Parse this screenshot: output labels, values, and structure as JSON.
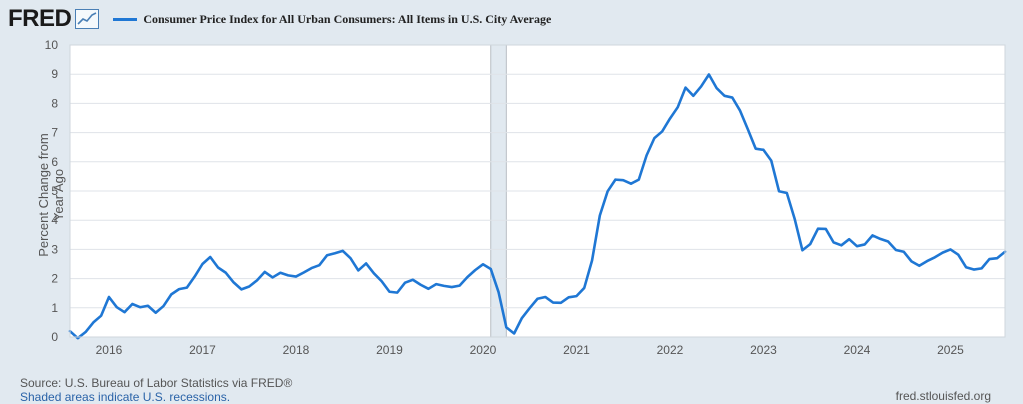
{
  "brand": {
    "logo_text": "FRED",
    "logo_icon": "chart-line-icon"
  },
  "legend": {
    "label": "Consumer Price Index for All Urban Consumers: All Items in U.S. City Average",
    "color": "#1f77d4"
  },
  "footer": {
    "source": "Source: U.S. Bureau of Labor Statistics via FRED®",
    "recession_note": "Shaded areas indicate U.S. recessions.",
    "site": "fred.stlouisfed.org"
  },
  "chart_data": {
    "type": "line",
    "title": "Consumer Price Index for All Urban Consumers: All Items in U.S. City Average",
    "ylabel": "Percent Change from Year Ago",
    "xlabel": "",
    "ylim": [
      0,
      10
    ],
    "yticks": [
      0,
      1,
      2,
      3,
      4,
      5,
      6,
      7,
      8,
      9,
      10
    ],
    "xlim": [
      "2015-08",
      "2025-08"
    ],
    "xticks": [
      "2016",
      "2017",
      "2018",
      "2019",
      "2020",
      "2021",
      "2022",
      "2023",
      "2024",
      "2025"
    ],
    "grid": true,
    "recession_shading": [
      {
        "start": "2020-02",
        "end": "2020-04",
        "color": "#e1e9f0"
      }
    ],
    "series": [
      {
        "name": "Consumer Price Index for All Urban Consumers: All Items in U.S. City Average",
        "color": "#1f77d4",
        "x": [
          "2015-08",
          "2015-09",
          "2015-10",
          "2015-11",
          "2015-12",
          "2016-01",
          "2016-02",
          "2016-03",
          "2016-04",
          "2016-05",
          "2016-06",
          "2016-07",
          "2016-08",
          "2016-09",
          "2016-10",
          "2016-11",
          "2016-12",
          "2017-01",
          "2017-02",
          "2017-03",
          "2017-04",
          "2017-05",
          "2017-06",
          "2017-07",
          "2017-08",
          "2017-09",
          "2017-10",
          "2017-11",
          "2017-12",
          "2018-01",
          "2018-02",
          "2018-03",
          "2018-04",
          "2018-05",
          "2018-06",
          "2018-07",
          "2018-08",
          "2018-09",
          "2018-10",
          "2018-11",
          "2018-12",
          "2019-01",
          "2019-02",
          "2019-03",
          "2019-04",
          "2019-05",
          "2019-06",
          "2019-07",
          "2019-08",
          "2019-09",
          "2019-10",
          "2019-11",
          "2019-12",
          "2020-01",
          "2020-02",
          "2020-03",
          "2020-04",
          "2020-05",
          "2020-06",
          "2020-07",
          "2020-08",
          "2020-09",
          "2020-10",
          "2020-11",
          "2020-12",
          "2021-01",
          "2021-02",
          "2021-03",
          "2021-04",
          "2021-05",
          "2021-06",
          "2021-07",
          "2021-08",
          "2021-09",
          "2021-10",
          "2021-11",
          "2021-12",
          "2022-01",
          "2022-02",
          "2022-03",
          "2022-04",
          "2022-05",
          "2022-06",
          "2022-07",
          "2022-08",
          "2022-09",
          "2022-10",
          "2022-11",
          "2022-12",
          "2023-01",
          "2023-02",
          "2023-03",
          "2023-04",
          "2023-05",
          "2023-06",
          "2023-07",
          "2023-08",
          "2023-09",
          "2023-10",
          "2023-11",
          "2023-12",
          "2024-01",
          "2024-02",
          "2024-03",
          "2024-04",
          "2024-05",
          "2024-06",
          "2024-07",
          "2024-08",
          "2024-09",
          "2024-10",
          "2024-11",
          "2024-12",
          "2025-01",
          "2025-02",
          "2025-03",
          "2025-04",
          "2025-05",
          "2025-06",
          "2025-07",
          "2025-08"
        ],
        "values": [
          0.2,
          -0.04,
          0.17,
          0.5,
          0.73,
          1.37,
          1.02,
          0.85,
          1.13,
          1.02,
          1.07,
          0.83,
          1.06,
          1.46,
          1.64,
          1.69,
          2.07,
          2.5,
          2.74,
          2.38,
          2.2,
          1.87,
          1.63,
          1.73,
          1.94,
          2.23,
          2.04,
          2.2,
          2.11,
          2.07,
          2.21,
          2.36,
          2.46,
          2.8,
          2.87,
          2.95,
          2.7,
          2.28,
          2.52,
          2.18,
          1.91,
          1.55,
          1.52,
          1.86,
          1.96,
          1.79,
          1.65,
          1.81,
          1.75,
          1.71,
          1.76,
          2.05,
          2.29,
          2.49,
          2.33,
          1.54,
          0.33,
          0.12,
          0.65,
          0.99,
          1.31,
          1.37,
          1.18,
          1.17,
          1.36,
          1.4,
          1.68,
          2.62,
          4.16,
          4.99,
          5.39,
          5.37,
          5.25,
          5.39,
          6.22,
          6.81,
          7.04,
          7.48,
          7.87,
          8.54,
          8.26,
          8.58,
          8.99,
          8.52,
          8.26,
          8.2,
          7.75,
          7.11,
          6.45,
          6.41,
          6.04,
          4.99,
          4.93,
          4.05,
          2.97,
          3.18,
          3.71,
          3.7,
          3.24,
          3.14,
          3.35,
          3.11,
          3.17,
          3.48,
          3.36,
          3.27,
          2.98,
          2.92,
          2.59,
          2.44,
          2.6,
          2.73,
          2.89,
          3.0,
          2.82,
          2.39,
          2.31,
          2.35,
          2.67,
          2.7,
          2.92
        ]
      }
    ]
  }
}
